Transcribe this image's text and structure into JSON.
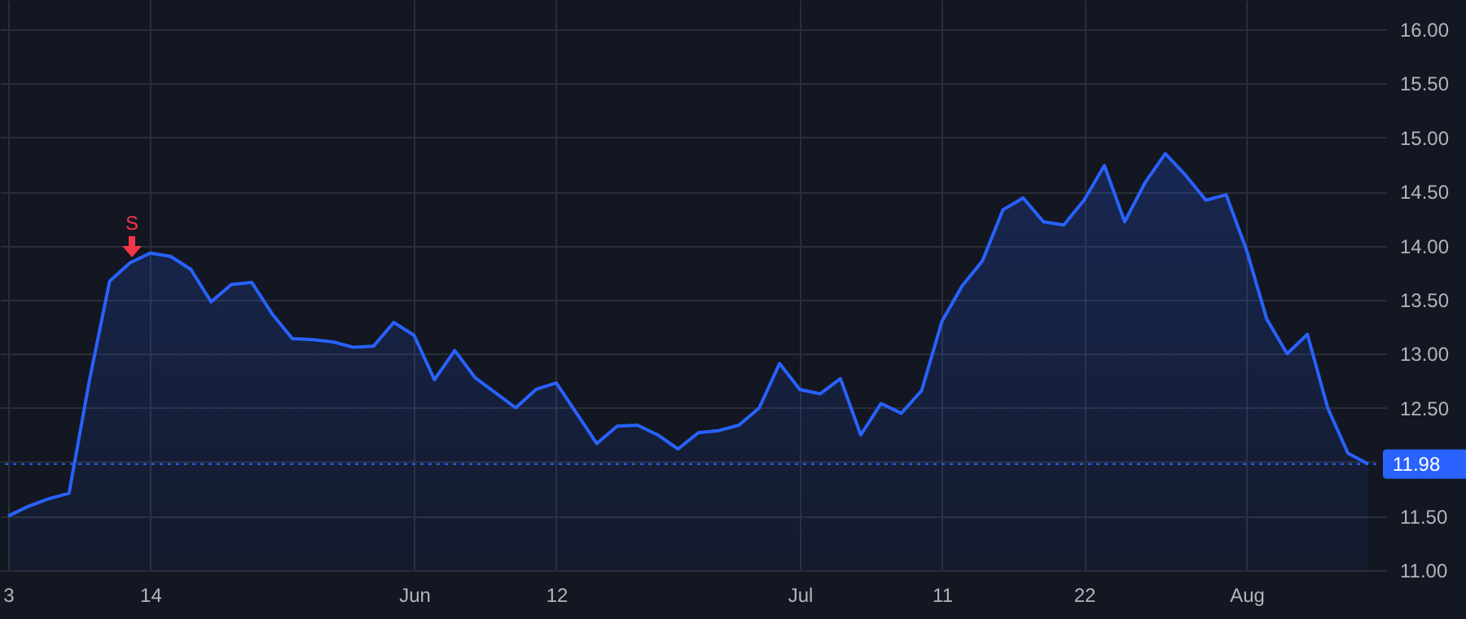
{
  "chart_data": {
    "type": "area",
    "categories": [
      "3",
      null,
      null,
      null,
      null,
      null,
      null,
      "14",
      null,
      null,
      null,
      null,
      null,
      null,
      null,
      null,
      null,
      null,
      null,
      null,
      "Jun",
      null,
      null,
      null,
      null,
      null,
      null,
      "12",
      null,
      null,
      null,
      null,
      null,
      null,
      null,
      null,
      null,
      null,
      null,
      "Jul",
      null,
      null,
      null,
      null,
      null,
      null,
      "11",
      null,
      null,
      null,
      null,
      null,
      null,
      "22",
      null,
      null,
      null,
      null,
      null,
      null,
      null,
      "Aug",
      null,
      null,
      null,
      null,
      null,
      null
    ],
    "series": [
      {
        "color": "#2962ff",
        "values": [
          11.5,
          11.59,
          11.66,
          11.71,
          12.75,
          13.67,
          13.84,
          13.93,
          13.9,
          13.78,
          13.48,
          13.64,
          13.66,
          13.37,
          13.14,
          13.13,
          13.11,
          13.06,
          13.07,
          13.29,
          13.17,
          12.76,
          13.03,
          12.78,
          12.64,
          12.5,
          12.67,
          12.73,
          12.45,
          12.17,
          12.33,
          12.34,
          12.25,
          12.12,
          12.27,
          12.29,
          12.34,
          12.5,
          12.91,
          12.67,
          12.63,
          12.77,
          12.25,
          12.54,
          12.45,
          12.66,
          13.3,
          13.63,
          13.86,
          14.33,
          14.44,
          14.22,
          14.19,
          14.42,
          14.74,
          14.22,
          14.58,
          14.85,
          14.65,
          14.42,
          14.47,
          13.96,
          13.32,
          13.0,
          13.18,
          12.5,
          12.08,
          11.98
        ]
      }
    ],
    "ylim": [
      11,
      16.27
    ],
    "yticks": [
      {
        "value": 11,
        "label": "11.00"
      },
      {
        "value": 11.5,
        "label": "11.50"
      },
      {
        "value": 12,
        "label": null
      },
      {
        "value": 12.5,
        "label": "12.50"
      },
      {
        "value": 13,
        "label": "13.00"
      },
      {
        "value": 13.5,
        "label": "13.50"
      },
      {
        "value": 14,
        "label": "14.00"
      },
      {
        "value": 14.5,
        "label": "14.50"
      },
      {
        "value": 15,
        "label": "15.00"
      },
      {
        "value": 15.5,
        "label": "15.50"
      },
      {
        "value": 16,
        "label": "16.00"
      }
    ],
    "ref_lines": [
      {
        "axis": "y",
        "value": 11.98,
        "label": "11.98",
        "color": "#2962ff",
        "line_style": "dotted"
      }
    ],
    "annotations": [
      "S"
    ],
    "grid": true,
    "marker": "none"
  }
}
